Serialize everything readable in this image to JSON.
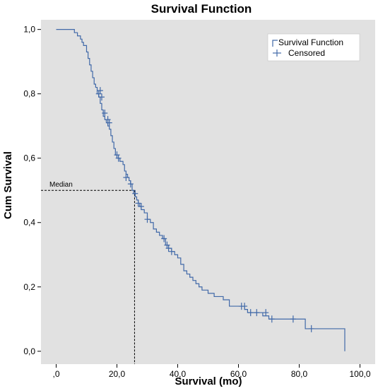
{
  "chart_data": {
    "type": "line",
    "title": "Survival Function",
    "xlabel": "Survival (mo)",
    "ylabel": "Cum Survival",
    "xlim": [
      -5,
      105
    ],
    "ylim": [
      -0.04,
      1.03
    ],
    "x_ticks": [
      0,
      20,
      40,
      60,
      80,
      100
    ],
    "x_tick_labels": [
      ",0",
      "20,0",
      "40,0",
      "60,0",
      "80,0",
      "100,0"
    ],
    "y_ticks": [
      0,
      0.2,
      0.4,
      0.6,
      0.8,
      1.0
    ],
    "y_tick_labels": [
      "0,0",
      "0,2",
      "0,4",
      "0,6",
      "0,8",
      "1,0"
    ],
    "grid": false,
    "legend_position": "top-right",
    "legend": [
      "Survival Function",
      "Censored"
    ],
    "colors": {
      "series": "#4169a8",
      "plot_bg": "#e1e1e1",
      "reference": "#000000"
    },
    "series": [
      {
        "name": "Survival Function",
        "kind": "step",
        "x": [
          0,
          6,
          7,
          8,
          8.5,
          9,
          10,
          10.5,
          11,
          11.5,
          12,
          12.5,
          13,
          13.5,
          14,
          14.5,
          15,
          15.5,
          16,
          16.5,
          17,
          17.5,
          18,
          18.5,
          19,
          19.5,
          20,
          21,
          22,
          22.5,
          23,
          23.5,
          24,
          24.5,
          25,
          25.5,
          26,
          26.5,
          27,
          27.5,
          28,
          29,
          30,
          31,
          32,
          33,
          34,
          35,
          36,
          37,
          38,
          39,
          40,
          41,
          42,
          43,
          44,
          45,
          46,
          47,
          48,
          50,
          52,
          55,
          57,
          60,
          62,
          63,
          64,
          66,
          68,
          70,
          71,
          77,
          82,
          95
        ],
        "y": [
          1.0,
          0.99,
          0.98,
          0.97,
          0.96,
          0.95,
          0.93,
          0.91,
          0.89,
          0.87,
          0.85,
          0.83,
          0.82,
          0.8,
          0.79,
          0.77,
          0.75,
          0.73,
          0.72,
          0.71,
          0.7,
          0.69,
          0.67,
          0.65,
          0.63,
          0.61,
          0.6,
          0.59,
          0.58,
          0.56,
          0.55,
          0.54,
          0.53,
          0.52,
          0.5,
          0.49,
          0.48,
          0.47,
          0.46,
          0.45,
          0.44,
          0.43,
          0.41,
          0.4,
          0.38,
          0.37,
          0.36,
          0.35,
          0.33,
          0.32,
          0.31,
          0.3,
          0.29,
          0.27,
          0.25,
          0.24,
          0.23,
          0.22,
          0.21,
          0.2,
          0.19,
          0.18,
          0.17,
          0.16,
          0.14,
          0.14,
          0.13,
          0.12,
          0.12,
          0.12,
          0.11,
          0.1,
          0.1,
          0.1,
          0.07,
          0.0
        ]
      },
      {
        "name": "Censored",
        "kind": "marker",
        "points": [
          [
            14,
            0.8
          ],
          [
            14.5,
            0.81
          ],
          [
            15,
            0.79
          ],
          [
            16,
            0.74
          ],
          [
            17,
            0.72
          ],
          [
            17.5,
            0.71
          ],
          [
            20,
            0.61
          ],
          [
            20.5,
            0.6
          ],
          [
            23,
            0.54
          ],
          [
            24.5,
            0.52
          ],
          [
            26,
            0.49
          ],
          [
            27,
            0.46
          ],
          [
            28,
            0.45
          ],
          [
            30,
            0.41
          ],
          [
            35.5,
            0.35
          ],
          [
            36.5,
            0.33
          ],
          [
            37,
            0.32
          ],
          [
            38,
            0.31
          ],
          [
            61,
            0.14
          ],
          [
            62,
            0.14
          ],
          [
            64,
            0.12
          ],
          [
            66,
            0.12
          ],
          [
            69,
            0.12
          ],
          [
            71,
            0.1
          ],
          [
            78,
            0.1
          ],
          [
            84,
            0.07
          ]
        ]
      }
    ],
    "annotations": [
      {
        "text": "Median",
        "x": 25.8,
        "y": 0.5
      }
    ]
  }
}
